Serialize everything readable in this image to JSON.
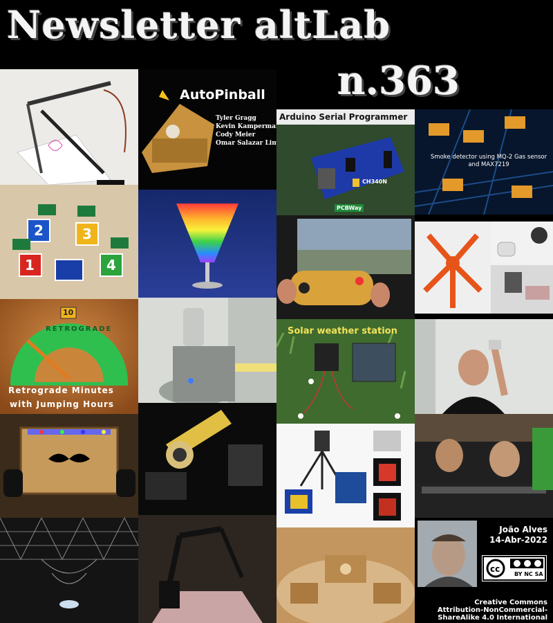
{
  "header": {
    "title": "Newsletter altLab",
    "issue": "n.363"
  },
  "tiles": {
    "autopinball": {
      "title": "AutoPinball",
      "names": [
        "Tyler Gragg",
        "Kevin Kamperman",
        "Cody Meier",
        "Omar Salazar Lima"
      ]
    },
    "arduino": {
      "title": "Arduino Serial Programmer",
      "chip_label": "CH340N",
      "sponsor": "PCBWay"
    },
    "smoke": {
      "caption": "Smoke detector using MQ-2 Gas sensor and MAX7219"
    },
    "numbers": [
      "1",
      "2",
      "3",
      "4"
    ],
    "retrograde": {
      "dial_number": "10",
      "dial_text": "RETROGRADE",
      "caption_line1": "Retrograde Minutes",
      "caption_line2": "with Jumping Hours"
    },
    "solar": {
      "title": "Solar weather station"
    }
  },
  "author": {
    "name": "João Alves",
    "date": "14-Abr-2022",
    "license_badge": "BY NC SA",
    "license_lines": [
      "Creative Commons",
      "Attribution-NonCommercial-",
      "ShareAlike 4.0 International"
    ]
  },
  "colors": {
    "background": "#000000",
    "title_text": "#f4f4f4"
  }
}
